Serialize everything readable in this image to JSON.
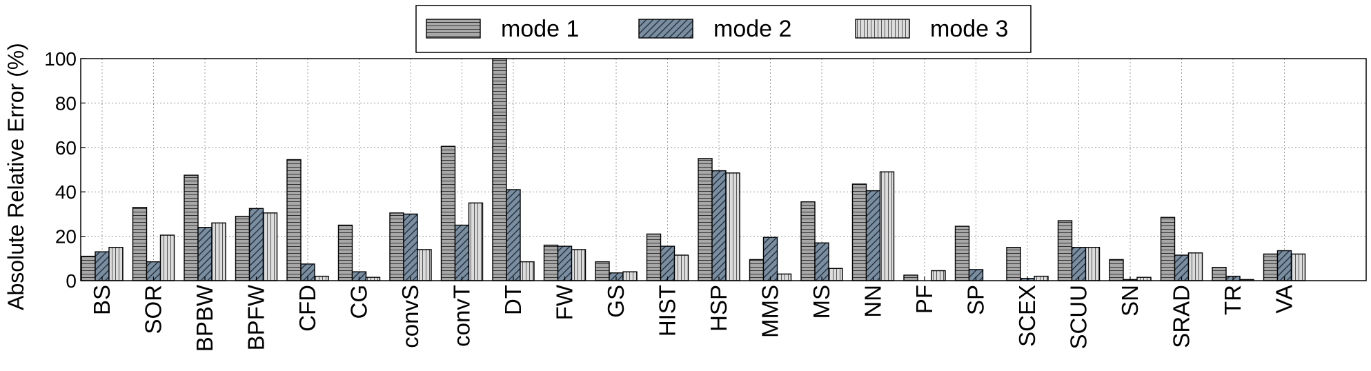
{
  "chart_data": {
    "type": "bar",
    "title": "",
    "xlabel": "",
    "ylabel": "Absolute Relative Error (%)",
    "ylim": [
      0,
      100
    ],
    "yticks": [
      0,
      20,
      40,
      60,
      80,
      100
    ],
    "grid": true,
    "legend_position": "top-center",
    "categories": [
      "BS",
      "SOR",
      "BPBW",
      "BPFW",
      "CFD",
      "CG",
      "convS",
      "convT",
      "DT",
      "FW",
      "GS",
      "HIST",
      "HSP",
      "MMS",
      "MS",
      "NN",
      "PF",
      "SP",
      "SCEX",
      "SCUU",
      "SN",
      "SRAD",
      "TR",
      "VA"
    ],
    "series": [
      {
        "name": "mode 1",
        "pattern": "horizontal-lines",
        "color": "#a8a8a8",
        "values": [
          11,
          33,
          47.5,
          29,
          54.5,
          25,
          30.5,
          60.5,
          100,
          16,
          8.5,
          21,
          55,
          9.5,
          35.5,
          43.5,
          2.5,
          24.5,
          15,
          27,
          9.5,
          28.5,
          6,
          12
        ]
      },
      {
        "name": "mode 2",
        "pattern": "diagonal-lines",
        "color": "#7a8ea2",
        "values": [
          13,
          8.5,
          24,
          32.5,
          7.5,
          4,
          30,
          25,
          41,
          15.5,
          3.5,
          15.5,
          49.5,
          19.5,
          17,
          40.5,
          0,
          5,
          1,
          15,
          0.5,
          11.5,
          2,
          13.5
        ]
      },
      {
        "name": "mode 3",
        "pattern": "vertical-lines",
        "color": "#dcdcdc",
        "values": [
          15,
          20.5,
          26,
          30.5,
          2,
          1.5,
          14,
          35,
          8.5,
          14,
          4,
          11.5,
          48.5,
          3,
          5.5,
          49,
          4.5,
          0,
          2,
          15,
          1.5,
          12.5,
          0.5,
          12
        ]
      }
    ]
  }
}
